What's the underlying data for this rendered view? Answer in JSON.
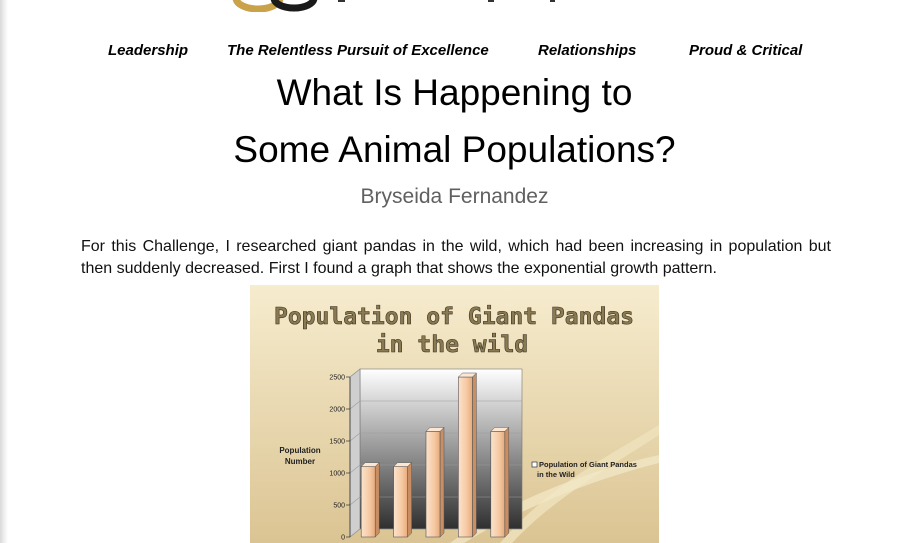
{
  "nav": {
    "items": [
      {
        "label": "Leadership"
      },
      {
        "label": "The Relentless Pursuit of Excellence"
      },
      {
        "label": "Relationships"
      },
      {
        "label": "Proud & Critical"
      }
    ]
  },
  "article": {
    "title_line1": "What Is Happening to",
    "title_line2": "Some Animal Populations?",
    "author": "Bryseida Fernandez",
    "intro": "For this Challenge, I researched giant pandas in the wild, which had been increasing in population but then suddenly decreased. First I found a graph that shows the exponential growth pattern."
  },
  "colors": {
    "logo_gold": "#c9a24a",
    "logo_dark": "#1a1a1a",
    "chart_bg_top": "#f3e8c6",
    "chart_bg_bottom": "#d9c291",
    "title_fill": "#8a7a52",
    "bar_fill": "#f6c9a2"
  },
  "chart_data": {
    "type": "bar",
    "title_line1": "Population of Giant Pandas",
    "title_line2": "in the wild",
    "ylabel_line1": "Population",
    "ylabel_line2": "Number",
    "yticks": [
      "2500",
      "2000",
      "1500",
      "1000",
      "500",
      "0"
    ],
    "ylim": [
      0,
      2500
    ],
    "values": [
      1100,
      1100,
      1650,
      2500,
      1650
    ],
    "legend": "Population of Giant Pandas in the Wild",
    "legend_line1": "Population of Giant Pandas",
    "legend_line2": "in the Wild",
    "legend_position": "right",
    "grid": true
  }
}
